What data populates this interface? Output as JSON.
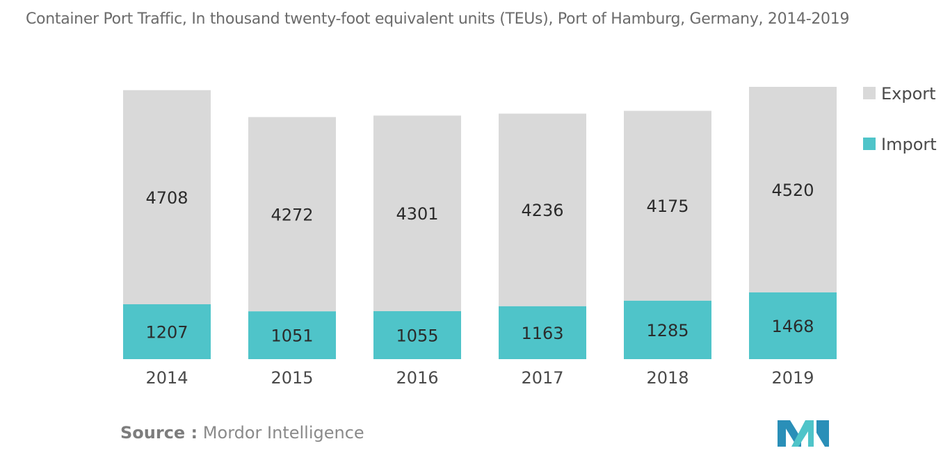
{
  "chart_data": {
    "type": "bar",
    "stacked": true,
    "title": "Container Port Traffic, In thousand twenty-foot equivalent units (TEUs), Port of Hamburg, Germany, 2014-2019",
    "categories": [
      "2014",
      "2015",
      "2016",
      "2017",
      "2018",
      "2019"
    ],
    "series": [
      {
        "name": "Import",
        "values": [
          1207,
          1051,
          1055,
          1163,
          1285,
          1468
        ],
        "color": "#4fc4c9"
      },
      {
        "name": "Export",
        "values": [
          4708,
          4272,
          4301,
          4236,
          4175,
          4520
        ],
        "color": "#d9d9d9"
      }
    ],
    "legend_position": "right",
    "grid": false,
    "y_axis_visible": false,
    "ylim": [
      0,
      5988
    ]
  },
  "source": {
    "prefix": "Source :",
    "name": "Mordor Intelligence"
  },
  "logo": {
    "icon": "mordor-intelligence-logo",
    "colors": [
      "#2a8fb8",
      "#4fc4c9"
    ]
  }
}
